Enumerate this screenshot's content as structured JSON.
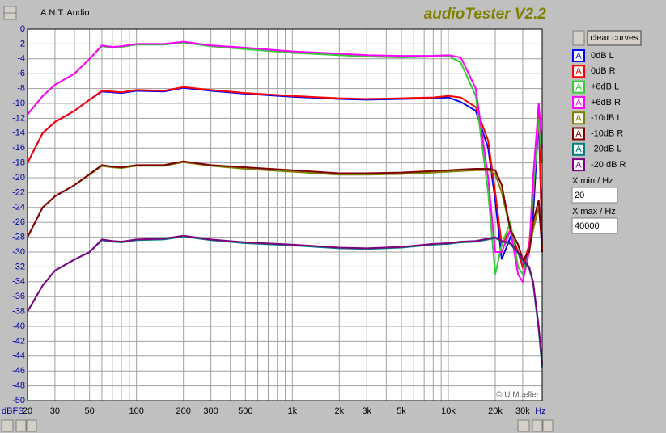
{
  "app": {
    "company": "A.N.T. Audio",
    "title": "audioTester V2.2",
    "copyright": "© U.Mueller"
  },
  "controls": {
    "clear_button": "clear curves",
    "xmin_label": "X min / Hz",
    "xmin_value": "20",
    "xmax_label": "X max / Hz",
    "xmax_value": "40000"
  },
  "chart_data": {
    "type": "line",
    "x_label": "Hz",
    "y_label": "dBFS",
    "log_x": true,
    "grid": true,
    "xlim": [
      20,
      40000
    ],
    "ylim": [
      -50,
      0
    ],
    "xticks": [
      20,
      30,
      50,
      100,
      200,
      300,
      500,
      {
        "value": 1000,
        "label": "1k"
      },
      {
        "value": 2000,
        "label": "2k"
      },
      {
        "value": 3000,
        "label": "3k"
      },
      {
        "value": 5000,
        "label": "5k"
      },
      {
        "value": 10000,
        "label": "10k"
      },
      {
        "value": 20000,
        "label": "20k"
      },
      {
        "value": 30000,
        "label": "30k"
      }
    ],
    "xminor_ticks": [
      40,
      60,
      70,
      80,
      90,
      400,
      600,
      700,
      800,
      900,
      4000,
      6000,
      7000,
      8000,
      9000,
      40000
    ],
    "yticks": [
      0,
      -2,
      -4,
      -6,
      -8,
      -10,
      -12,
      -14,
      -16,
      -18,
      -20,
      -22,
      -24,
      -26,
      -28,
      -30,
      -32,
      -34,
      -36,
      -38,
      -40,
      -42,
      -44,
      -46,
      -48,
      -50
    ],
    "x": [
      20,
      25,
      30,
      40,
      50,
      60,
      70,
      80,
      100,
      150,
      200,
      300,
      500,
      1000,
      2000,
      3000,
      5000,
      8000,
      10000,
      12000,
      15000,
      18000,
      20000,
      22000,
      25000,
      28000,
      30000,
      33000,
      35000,
      38000,
      40000
    ],
    "series": [
      {
        "name": "0dB L",
        "color": "#0000ff",
        "values": [
          -18,
          -14,
          -12.5,
          -11,
          -9.5,
          -8.4,
          -8.5,
          -8.6,
          -8.3,
          -8.4,
          -7.9,
          -8.3,
          -8.7,
          -9.1,
          -9.4,
          -9.5,
          -9.4,
          -9.3,
          -9.2,
          -9.8,
          -11,
          -16,
          -23,
          -31,
          -28,
          -30,
          -32,
          -30,
          -25,
          -12,
          -29
        ]
      },
      {
        "name": "0dB R",
        "color": "#ff0000",
        "values": [
          -18,
          -14,
          -12.5,
          -11,
          -9.5,
          -8.3,
          -8.4,
          -8.5,
          -8.2,
          -8.3,
          -7.8,
          -8.2,
          -8.6,
          -9,
          -9.3,
          -9.4,
          -9.3,
          -9.2,
          -9,
          -9.2,
          -10.5,
          -15,
          -22,
          -29,
          -27,
          -30,
          -32,
          -29,
          -23,
          -10,
          -30
        ]
      },
      {
        "name": "+6dB L",
        "color": "#33cc33",
        "values": [
          -11.5,
          -9,
          -7.5,
          -6,
          -4,
          -2.3,
          -2.5,
          -2.4,
          -2.1,
          -2.1,
          -1.8,
          -2.3,
          -2.7,
          -3.2,
          -3.5,
          -3.7,
          -3.8,
          -3.7,
          -3.6,
          -4.5,
          -9,
          -22,
          -33,
          -29,
          -26,
          -32,
          -33,
          -30,
          -22,
          -12,
          -18
        ]
      },
      {
        "name": "+6dB R",
        "color": "#ff00ff",
        "values": [
          -11.5,
          -9,
          -7.5,
          -6,
          -4,
          -2.2,
          -2.4,
          -2.3,
          -2,
          -2,
          -1.7,
          -2.2,
          -2.5,
          -3,
          -3.3,
          -3.5,
          -3.6,
          -3.6,
          -3.5,
          -3.8,
          -8,
          -20,
          -30,
          -30,
          -27,
          -33,
          -34,
          -30,
          -20,
          -10,
          -16
        ]
      },
      {
        "name": "-10dB L",
        "color": "#808000",
        "values": [
          -28,
          -24,
          -22.5,
          -21,
          -19.6,
          -18.4,
          -18.6,
          -18.7,
          -18.4,
          -18.4,
          -17.9,
          -18.4,
          -18.8,
          -19.2,
          -19.6,
          -19.6,
          -19.5,
          -19.3,
          -19.2,
          -19.1,
          -19,
          -19,
          -19.5,
          -22,
          -27,
          -29,
          -31,
          -30,
          -27,
          -24,
          -29
        ]
      },
      {
        "name": "-10dB R",
        "color": "#800000",
        "values": [
          -28,
          -24,
          -22.5,
          -21,
          -19.5,
          -18.3,
          -18.5,
          -18.6,
          -18.3,
          -18.3,
          -17.8,
          -18.3,
          -18.6,
          -19,
          -19.4,
          -19.4,
          -19.3,
          -19.1,
          -19,
          -18.9,
          -18.8,
          -18.8,
          -19,
          -21,
          -27,
          -29,
          -31,
          -30,
          -26,
          -23,
          -30
        ]
      },
      {
        "name": "-20dB L",
        "color": "#008080",
        "values": [
          -38,
          -34.5,
          -32.5,
          -31,
          -30,
          -28.4,
          -28.6,
          -28.7,
          -28.4,
          -28.3,
          -27.9,
          -28.4,
          -28.8,
          -29.1,
          -29.5,
          -29.6,
          -29.4,
          -29,
          -28.9,
          -28.7,
          -28.6,
          -28.3,
          -28.1,
          -28.6,
          -28.9,
          -30.2,
          -31.2,
          -32.2,
          -34.2,
          -40.5,
          -45.5
        ]
      },
      {
        "name": "-20 dB R",
        "color": "#800080",
        "values": [
          -38,
          -34.5,
          -32.5,
          -31,
          -30,
          -28.3,
          -28.5,
          -28.6,
          -28.3,
          -28.2,
          -27.8,
          -28.3,
          -28.7,
          -29,
          -29.4,
          -29.5,
          -29.3,
          -28.9,
          -28.8,
          -28.6,
          -28.5,
          -28.2,
          -28,
          -28.5,
          -28.8,
          -30,
          -31,
          -32,
          -34,
          -40,
          -45
        ]
      }
    ]
  }
}
